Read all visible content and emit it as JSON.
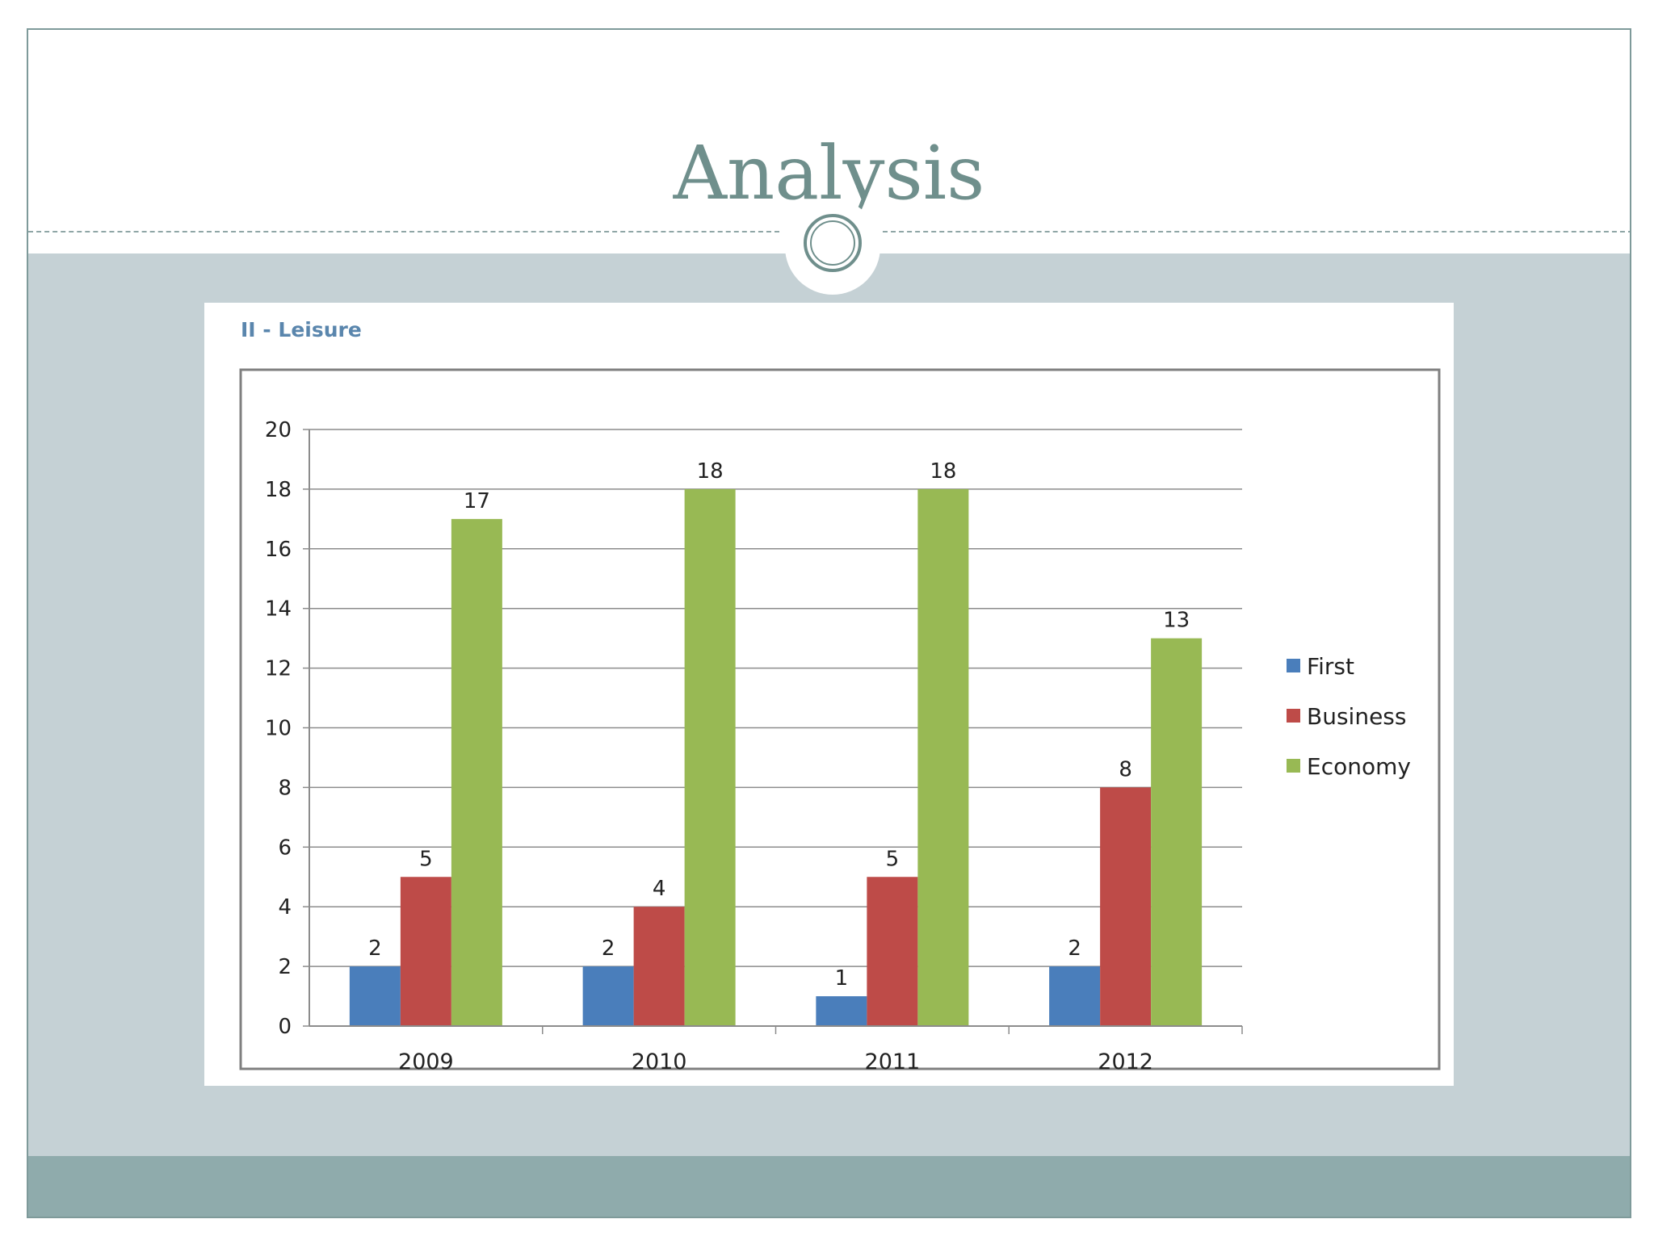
{
  "slide": {
    "title": "Analysis"
  },
  "chart_data": {
    "type": "bar",
    "title": "II - Leisure",
    "categories": [
      "2009",
      "2010",
      "2011",
      "2012"
    ],
    "series": [
      {
        "name": "First",
        "values": [
          2,
          2,
          1,
          2
        ],
        "color": "#4a7ebb"
      },
      {
        "name": "Business",
        "values": [
          5,
          4,
          5,
          8
        ],
        "color": "#be4b48"
      },
      {
        "name": "Economy",
        "values": [
          17,
          18,
          18,
          13
        ],
        "color": "#98b954"
      }
    ],
    "ylim": [
      0,
      20
    ],
    "yticks": [
      0,
      2,
      4,
      6,
      8,
      10,
      12,
      14,
      16,
      18,
      20
    ],
    "data_labels": true,
    "grid": true,
    "legend": "right"
  },
  "colors": {
    "title": "#6f8f8c",
    "content_band": "#c5d1d5",
    "footer_band": "#8fabac"
  }
}
